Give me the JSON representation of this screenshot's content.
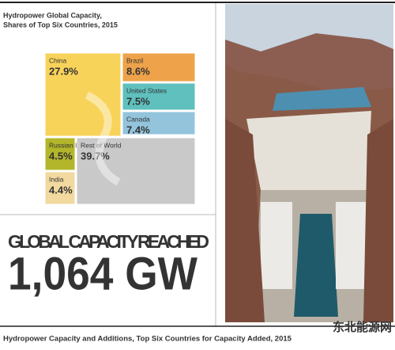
{
  "chart_data": {
    "type": "treemap",
    "title": "Hydropower Global Capacity,",
    "subtitle": "Shares of Top Six Countries, 2015",
    "categories": [
      "China",
      "Brazil",
      "United States",
      "Canada",
      "Russian Federat.",
      "India",
      "Rest of World"
    ],
    "values": [
      27.9,
      8.6,
      7.5,
      7.4,
      4.5,
      4.4,
      39.7
    ],
    "value_labels": [
      "27.9%",
      "8.6%",
      "7.5%",
      "7.4%",
      "4.5%",
      "4.4%",
      "39.7%"
    ],
    "colors": [
      "#f8d35a",
      "#eea24a",
      "#5fc0be",
      "#93c4dc",
      "#b3b62a",
      "#f1d9a0",
      "#c9c9c9"
    ]
  },
  "headline": "GLOBAL CAPACITY REACHED",
  "big_number": "1,064 GW",
  "footer": "Hydropower Capacity and Additions, Top Six Countries for Capacity Added, 2015",
  "watermark": "东北能源网"
}
